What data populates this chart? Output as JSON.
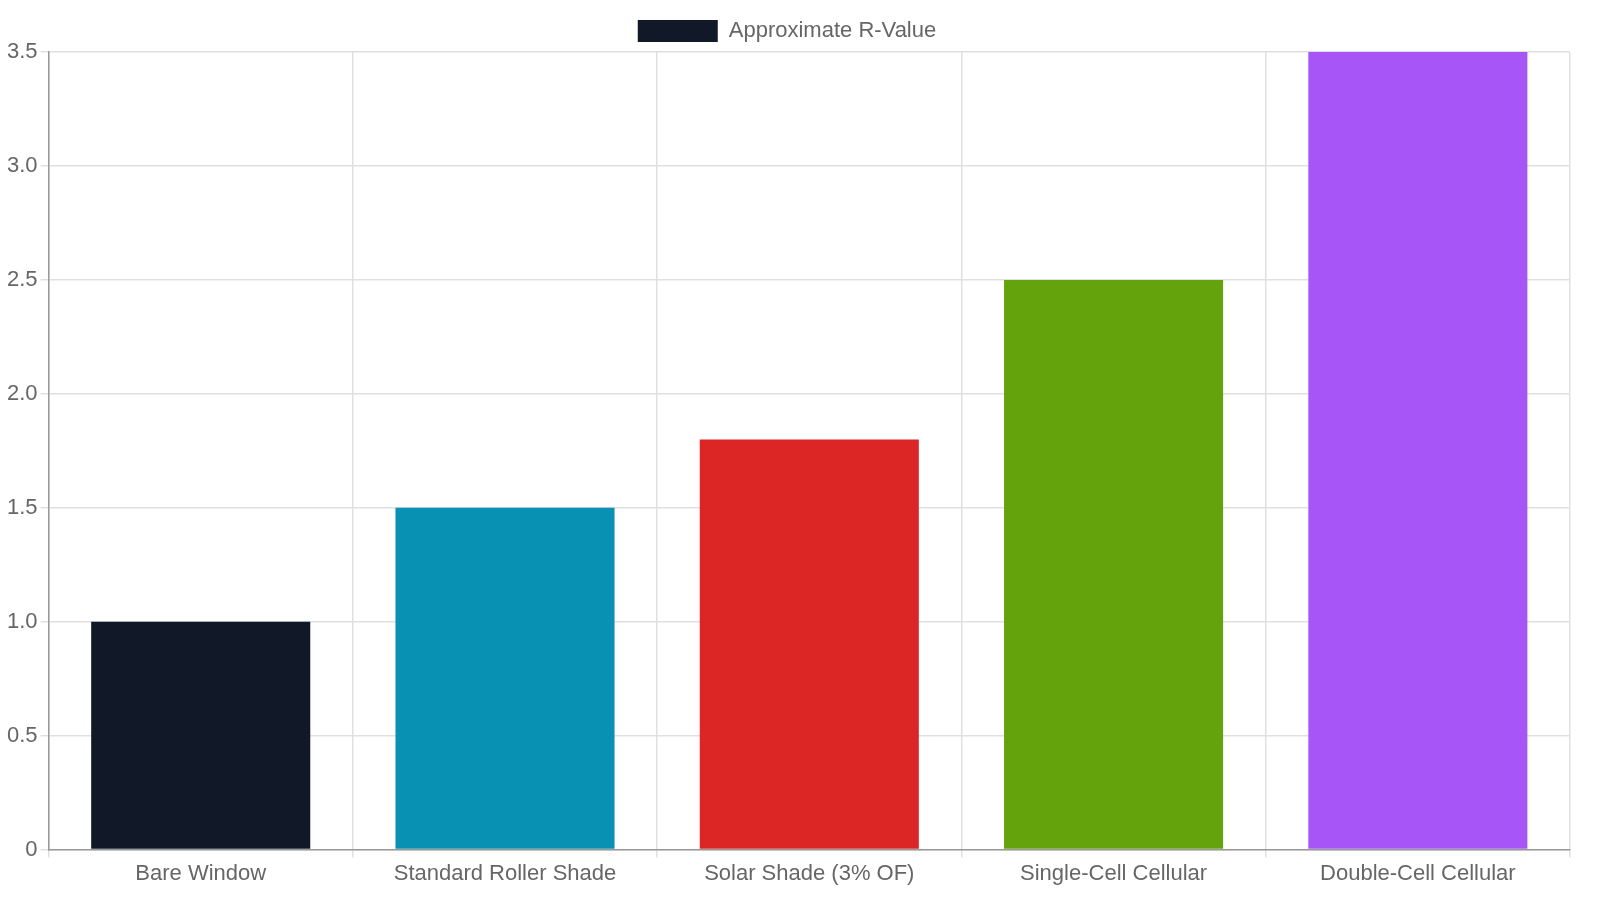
{
  "chart_data": {
    "type": "bar",
    "categories": [
      "Bare Window",
      "Standard Roller Shade",
      "Solar Shade (3% OF)",
      "Single-Cell Cellular",
      "Double-Cell Cellular"
    ],
    "series": [
      {
        "name": "Approximate R-Value",
        "colors": [
          "#111827",
          "#0891b2",
          "#dc2626",
          "#65a30d",
          "#a855f7"
        ],
        "values": [
          1.0,
          1.5,
          1.8,
          2.5,
          3.5
        ]
      }
    ],
    "ylim": [
      0,
      3.5
    ],
    "yticks": [
      0,
      {
        "value": 0.5,
        "label": "0.5"
      },
      {
        "value": 1,
        "label": "1.0"
      },
      {
        "value": 1.5,
        "label": "1.5"
      },
      {
        "value": 2,
        "label": "2.0"
      },
      {
        "value": 2.5,
        "label": "2.5"
      },
      {
        "value": 3,
        "label": "3.0"
      },
      {
        "value": 3.5,
        "label": "3.5"
      }
    ],
    "grid": true,
    "legend": "top"
  }
}
